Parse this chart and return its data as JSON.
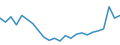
{
  "values": [
    38,
    32,
    40,
    28,
    42,
    36,
    30,
    20,
    10,
    5,
    8,
    4,
    12,
    8,
    14,
    16,
    13,
    17,
    19,
    22,
    55,
    38,
    42
  ],
  "line_color": "#3a8fc1",
  "background_color": "#ffffff",
  "linewidth": 1.1
}
